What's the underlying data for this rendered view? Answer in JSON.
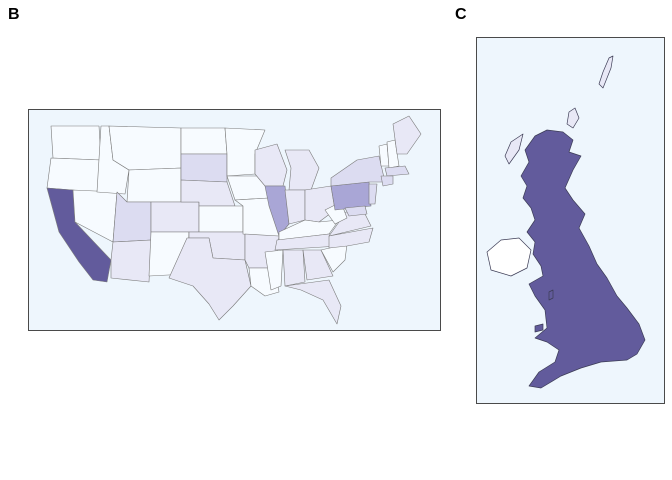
{
  "panels": [
    {
      "id": "B",
      "label": "B",
      "map": "usa-states"
    },
    {
      "id": "C",
      "label": "C",
      "map": "great-britain"
    }
  ],
  "colors": {
    "background": "#eef6fd",
    "border": "#4a4a4a",
    "level0": "#f7fbff",
    "level1": "#e8e8f6",
    "level2": "#dcdcf1",
    "level3": "#cbcbea",
    "level4": "#a9a6d6",
    "high": "#625b9c",
    "ireland": "#ffffff"
  }
}
